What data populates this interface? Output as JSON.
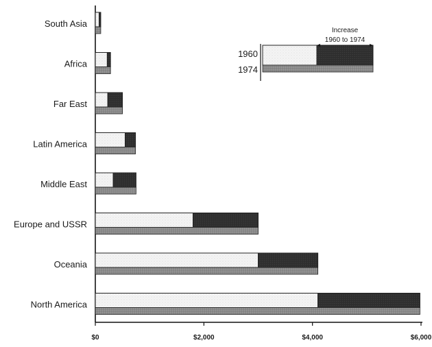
{
  "chart_data": {
    "type": "bar",
    "title": "",
    "xlabel": "",
    "ylabel": "",
    "xlim": [
      0,
      6000
    ],
    "x_ticks": [
      0,
      2000,
      4000,
      6000
    ],
    "x_tick_labels": [
      "$0",
      "$2,000",
      "$4,000",
      "$6,000"
    ],
    "categories": [
      "South Asia",
      "Africa",
      "Far East",
      "Latin America",
      "Middle East",
      "Europe and USSR",
      "Oceania",
      "North America"
    ],
    "series": [
      {
        "name": "1960",
        "values": [
          70,
          220,
          230,
          550,
          330,
          1800,
          3000,
          4100
        ]
      },
      {
        "name": "1974",
        "values": [
          100,
          280,
          500,
          740,
          750,
          3000,
          4100,
          5980
        ]
      }
    ],
    "legend": {
      "label_1960": "1960",
      "label_1974": "1974",
      "increase_line1": "Increase",
      "increase_line2": "1960 to 1974",
      "placement": "top-right"
    },
    "grid": false,
    "colors": {
      "base_1960": "#f3f3f3",
      "increase": "#2e2e2e",
      "bar_1974": "#8a8a8a",
      "axis": "#111111"
    }
  }
}
